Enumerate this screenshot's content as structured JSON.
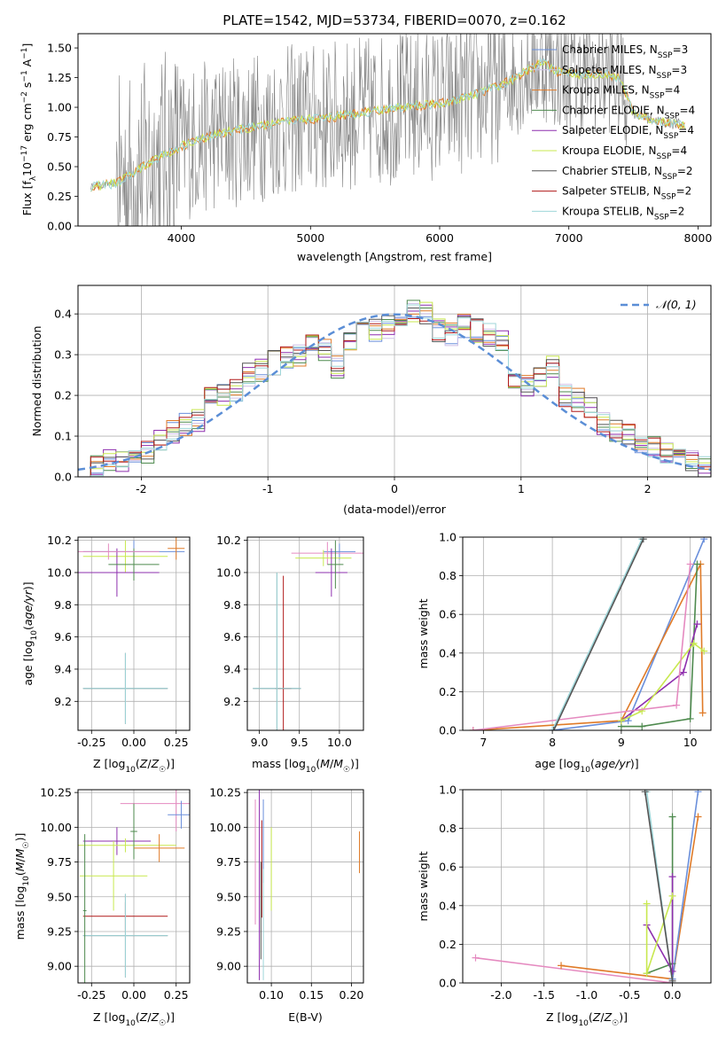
{
  "figure": {
    "title": "PLATE=1542, MJD=53734, FIBERID=0070, z=0.162"
  },
  "colors": {
    "chabrier_miles": "#6a8fdb",
    "salpeter_miles": "#cfc0e8",
    "kroupa_miles": "#e07b28",
    "chabrier_elodie": "#4e8a4e",
    "salpeter_elodie": "#8e2fae",
    "kroupa_elodie": "#c8e84f",
    "chabrier_stelib": "#555555",
    "salpeter_stelib": "#b01818",
    "kroupa_stelib": "#9ed6d9",
    "gaussian": "#5b8ed6",
    "spectrum": "#808080",
    "grid": "#b0b0b0",
    "pink": "#e58ac0"
  },
  "chart_data": [
    {
      "type": "line",
      "title": "PLATE=1542, MJD=53734, FIBERID=0070, z=0.162",
      "xlabel": "wavelength [Angstrom, rest frame]",
      "ylabel": "Flux [f_λ 10^-17 erg cm^-2 s^-1 A^-1]",
      "xlim": [
        3200,
        8100
      ],
      "ylim": [
        0,
        1.62
      ],
      "xticks": [
        4000,
        5000,
        6000,
        7000,
        8000
      ],
      "yticks": [
        0.0,
        0.25,
        0.5,
        0.75,
        1.0,
        1.25,
        1.5
      ],
      "grid": false,
      "legend": "upper right",
      "legend_entries": [
        "Chabrier MILES, N_SSP=3",
        "Salpeter MILES, N_SSP=3",
        "Kroupa MILES, N_SSP=4",
        "Chabrier ELODIE, N_SSP=4",
        "Salpeter ELODIE, N_SSP=4",
        "Kroupa ELODIE, N_SSP=4",
        "Chabrier STELIB, N_SSP=2",
        "Salpeter STELIB, N_SSP=2",
        "Kroupa STELIB, N_SSP=2"
      ],
      "model_continuum": {
        "x": [
          3300,
          3500,
          3700,
          3900,
          4100,
          4300,
          4500,
          4700,
          4900,
          5100,
          5300,
          5500,
          5700,
          5900,
          6100,
          6300,
          6500,
          6700,
          6800,
          6900,
          7100,
          7300,
          7400,
          7500,
          7700,
          7900
        ],
        "y": [
          0.33,
          0.36,
          0.5,
          0.62,
          0.72,
          0.78,
          0.82,
          0.86,
          0.9,
          0.9,
          0.94,
          0.97,
          1.0,
          1.02,
          1.05,
          1.12,
          1.2,
          1.32,
          1.38,
          1.3,
          1.28,
          1.28,
          1.24,
          0.95,
          0.88,
          0.85
        ]
      }
    },
    {
      "type": "line",
      "xlabel": "(data-model)/error",
      "ylabel": "Normed distribution",
      "xlim": [
        -2.5,
        2.5
      ],
      "ylim": [
        0,
        0.47
      ],
      "xticks": [
        -2,
        -1,
        0,
        1,
        2
      ],
      "yticks": [
        0.0,
        0.1,
        0.2,
        0.3,
        0.4
      ],
      "grid": true,
      "legend": "upper right",
      "legend_label": "𝒩(0, 1)",
      "histogram": {
        "bin_edges": [
          -2.5,
          -2.4,
          -2.3,
          -2.2,
          -2.1,
          -2.0,
          -1.9,
          -1.8,
          -1.7,
          -1.6,
          -1.5,
          -1.4,
          -1.3,
          -1.2,
          -1.1,
          -1.0,
          -0.9,
          -0.8,
          -0.7,
          -0.6,
          -0.5,
          -0.4,
          -0.3,
          -0.2,
          -0.1,
          0.0,
          0.1,
          0.2,
          0.3,
          0.4,
          0.5,
          0.6,
          0.7,
          0.8,
          0.9,
          1.0,
          1.1,
          1.2,
          1.3,
          1.4,
          1.5,
          1.6,
          1.7,
          1.8,
          1.9,
          2.0,
          2.1,
          2.2,
          2.3,
          2.4,
          2.5
        ],
        "values": [
          0.02,
          0.03,
          0.04,
          0.04,
          0.05,
          0.06,
          0.09,
          0.11,
          0.13,
          0.14,
          0.19,
          0.2,
          0.21,
          0.25,
          0.26,
          0.28,
          0.29,
          0.3,
          0.32,
          0.31,
          0.27,
          0.34,
          0.35,
          0.36,
          0.37,
          0.38,
          0.41,
          0.4,
          0.36,
          0.35,
          0.37,
          0.36,
          0.35,
          0.33,
          0.24,
          0.22,
          0.25,
          0.27,
          0.2,
          0.19,
          0.17,
          0.13,
          0.11,
          0.1,
          0.08,
          0.07,
          0.06,
          0.05,
          0.04,
          0.02
        ]
      }
    },
    {
      "type": "scatter",
      "xlabel": "Z [log10(Z/Z☉)]",
      "ylabel": "age [log10(age/yr)]",
      "xlim": [
        -0.33,
        0.33
      ],
      "ylim": [
        9.02,
        10.22
      ],
      "xticks": [
        -0.25,
        0.0,
        0.25
      ],
      "yticks": [
        9.2,
        9.4,
        9.6,
        9.8,
        10.0,
        10.2
      ],
      "grid": true
    },
    {
      "type": "scatter",
      "xlabel": "mass [log10(M/M☉)]",
      "xlim": [
        8.85,
        10.3
      ],
      "ylim": [
        9.02,
        10.22
      ],
      "xticks": [
        9.0,
        9.5,
        10.0
      ],
      "yticks": [
        9.2,
        9.4,
        9.6,
        9.8,
        10.0,
        10.2
      ],
      "grid": true
    },
    {
      "type": "line",
      "xlabel": "age [log10(age/yr)]",
      "ylabel": "mass weight",
      "xlim": [
        6.7,
        10.3
      ],
      "ylim": [
        0,
        1
      ],
      "xticks": [
        7,
        8,
        9,
        10
      ],
      "yticks": [
        0.0,
        0.2,
        0.4,
        0.6,
        0.8,
        1.0
      ],
      "grid": true
    },
    {
      "type": "scatter",
      "xlabel": "Z [log10(Z/Z☉)]",
      "ylabel": "mass [log10(M/M☉)]",
      "xlim": [
        -0.33,
        0.33
      ],
      "ylim": [
        8.88,
        10.27
      ],
      "xticks": [
        -0.25,
        0.0,
        0.25
      ],
      "yticks": [
        9.0,
        9.25,
        9.5,
        9.75,
        10.0,
        10.25
      ],
      "grid": true
    },
    {
      "type": "scatter",
      "xlabel": "E(B-V)",
      "xlim": [
        0.07,
        0.215
      ],
      "ylim": [
        8.88,
        10.27
      ],
      "xticks": [
        0.1,
        0.15,
        0.2
      ],
      "yticks": [
        9.0,
        9.25,
        9.5,
        9.75,
        10.0,
        10.25
      ],
      "grid": true
    },
    {
      "type": "line",
      "xlabel": "Z [log10(Z/Z☉)]",
      "ylabel": "mass weight",
      "xlim": [
        -2.45,
        0.45
      ],
      "ylim": [
        0,
        1
      ],
      "xticks": [
        -2.0,
        -1.5,
        -1.0,
        -0.5,
        0.0
      ],
      "yticks": [
        0.0,
        0.2,
        0.4,
        0.6,
        0.8,
        1.0
      ],
      "grid": true
    }
  ]
}
